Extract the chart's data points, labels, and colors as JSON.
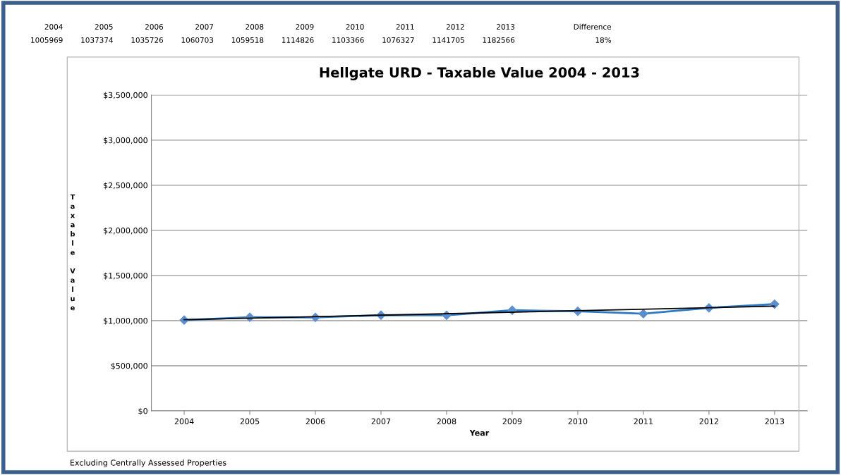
{
  "chart_data": {
    "type": "line",
    "title": "Hellgate URD - Taxable Value 2004 - 2013",
    "xlabel": "Year",
    "ylabel": "Taxable Value",
    "x": [
      2004,
      2005,
      2006,
      2007,
      2008,
      2009,
      2010,
      2011,
      2012,
      2013
    ],
    "series": [
      {
        "color": "#2f7ac4",
        "values": [
          1005969,
          1037374,
          1035726,
          1060703,
          1059518,
          1114826,
          1103366,
          1076327,
          1141705,
          1182566
        ],
        "marker": "diamond"
      },
      {
        "type": "line",
        "color": "#000000",
        "x": [
          2004,
          2013
        ],
        "values": [
          1010000,
          1160000
        ],
        "marker": "none"
      }
    ],
    "xlim": [
      2003.5,
      2013.5
    ],
    "xticks": [
      2004,
      2005,
      2006,
      2007,
      2008,
      2009,
      2010,
      2011,
      2012,
      2013
    ],
    "ylim": [
      0,
      3500000
    ],
    "yticks": [
      {
        "value": 0,
        "label": "$0"
      },
      {
        "value": 500000,
        "label": "$500,000"
      },
      {
        "value": 1000000,
        "label": "$1,000,000"
      },
      {
        "value": 1500000,
        "label": "$1,500,000"
      },
      {
        "value": 2000000,
        "label": "$2,000,000"
      },
      {
        "value": 2500000,
        "label": "$2,500,000"
      },
      {
        "value": 3000000,
        "label": "$3,000,000"
      },
      {
        "value": 3500000,
        "label": "$3,500,000"
      }
    ],
    "grid": "y",
    "legend": false,
    "annotations": [
      "2004",
      "2005",
      "2006",
      "2007",
      "2008",
      "2009",
      "2010",
      "2011",
      "2012",
      "2013",
      "Difference",
      "1005969",
      "1037374",
      "1035726",
      "1060703",
      "1059518",
      "1114826",
      "1103366",
      "1076327",
      "1141705",
      "1182566",
      "18%",
      "Excluding Centrally Assessed Properties"
    ]
  }
}
